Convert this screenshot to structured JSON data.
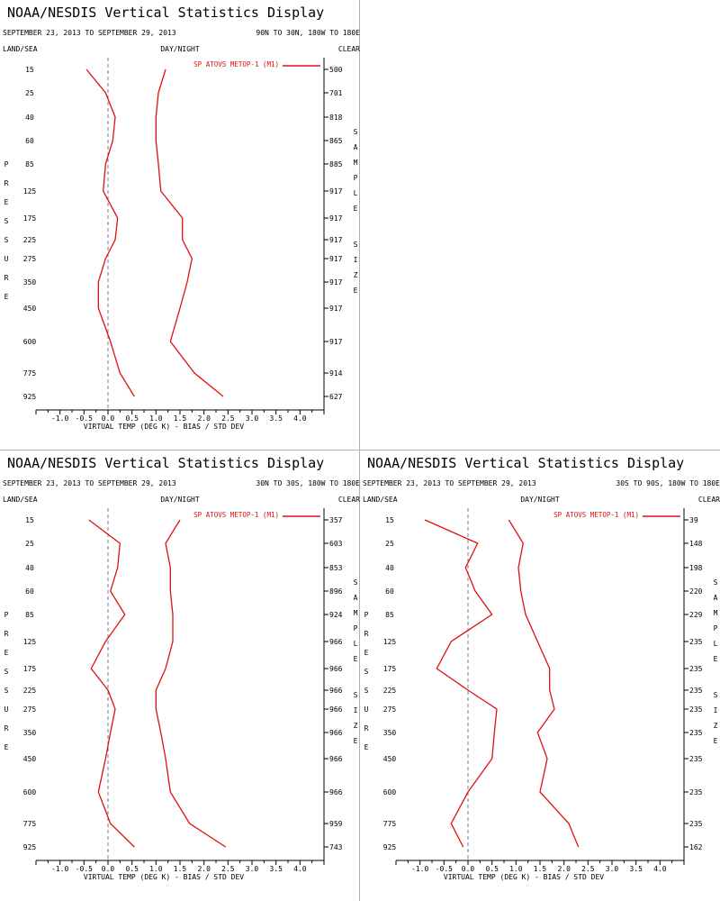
{
  "colors": {
    "series": "#e01010",
    "axis": "#000000",
    "zero_line": "#7a7a9a",
    "divider": "#b0b0b0"
  },
  "common": {
    "title": "NOAA/NESDIS Vertical Statistics Display",
    "date_range": "SEPTEMBER 23, 2013 TO SEPTEMBER 29, 2013",
    "land_sea": "LAND/SEA",
    "day_night": "DAY/NIGHT",
    "clear": "CLEAR",
    "legend": "SP ATOVS METOP-1 (M1)",
    "xlabel": "VIRTUAL TEMP (DEG K) - BIAS / STD DEV",
    "left_vertical": "PRESSURE",
    "right_vertical_1": "SAMPLE",
    "right_vertical_2": "SIZE"
  },
  "chart_data": [
    {
      "type": "line",
      "region": "90N TO 30N, 180W TO 180E",
      "y_levels": [
        "15",
        "25",
        "40",
        "60",
        "85",
        "125",
        "175",
        "225",
        "275",
        "350",
        "450",
        "600",
        "775",
        "925"
      ],
      "xlim": [
        -1.5,
        4.5
      ],
      "x_ticks": [
        "-1.0",
        "-0.5",
        "0.0",
        "0.5",
        "1.0",
        "1.5",
        "2.0",
        "2.5",
        "3.0",
        "3.5",
        "4.0"
      ],
      "grid": false,
      "legend_position": "top-right",
      "sample_size": [
        "500",
        "701",
        "818",
        "865",
        "885",
        "917",
        "917",
        "917",
        "917",
        "917",
        "917",
        "917",
        "914",
        "627"
      ],
      "series": [
        {
          "role": "bias",
          "values": [
            -0.45,
            -0.05,
            0.15,
            0.1,
            -0.05,
            -0.1,
            0.2,
            0.15,
            -0.05,
            -0.2,
            -0.2,
            0.05,
            0.25,
            0.55
          ],
          "xs": [
            -0.48,
            -0.15,
            0.08,
            0.07,
            -0.05,
            -0.05,
            0.1,
            0.12,
            -0.05,
            -0.2,
            -0.2,
            0.0,
            0.25,
            0.55
          ]
        },
        {
          "role": "std_dev",
          "values": [
            1.2,
            1.05,
            1.0,
            1.0,
            1.05,
            1.1,
            1.55,
            1.55,
            1.75,
            1.65,
            1.5,
            1.3,
            1.8,
            2.4
          ]
        }
      ]
    },
    {
      "type": "line",
      "region": "30N TO 30S, 180W TO 180E",
      "y_levels": [
        "15",
        "25",
        "40",
        "60",
        "85",
        "125",
        "175",
        "225",
        "275",
        "350",
        "450",
        "600",
        "775",
        "925"
      ],
      "xlim": [
        -1.5,
        4.5
      ],
      "x_ticks": [
        "-1.0",
        "-0.5",
        "0.0",
        "0.5",
        "1.0",
        "1.5",
        "2.0",
        "2.5",
        "3.0",
        "3.5",
        "4.0"
      ],
      "grid": false,
      "legend_position": "top-right",
      "sample_size": [
        "357",
        "603",
        "853",
        "896",
        "924",
        "966",
        "966",
        "966",
        "966",
        "966",
        "966",
        "966",
        "959",
        "743"
      ],
      "series": [
        {
          "role": "bias",
          "values": [
            -0.4,
            0.25,
            0.2,
            0.05,
            0.35,
            -0.05,
            -0.35,
            0.0,
            0.15,
            0.05,
            -0.05,
            -0.2,
            0.05,
            0.55
          ]
        },
        {
          "role": "std_dev",
          "values": [
            1.5,
            1.2,
            1.3,
            1.3,
            1.35,
            1.35,
            1.2,
            1.0,
            1.0,
            1.1,
            1.2,
            1.3,
            1.7,
            2.45
          ]
        }
      ]
    },
    {
      "type": "line",
      "region": "30S TO 90S, 180W TO 180E",
      "y_levels": [
        "15",
        "25",
        "40",
        "60",
        "85",
        "125",
        "175",
        "225",
        "275",
        "350",
        "450",
        "600",
        "775",
        "925"
      ],
      "xlim": [
        -1.5,
        4.5
      ],
      "x_ticks": [
        "-1.0",
        "-0.5",
        "0.0",
        "0.5",
        "1.0",
        "1.5",
        "2.0",
        "2.5",
        "3.0",
        "3.5",
        "4.0"
      ],
      "grid": false,
      "legend_position": "top-right",
      "sample_size": [
        "39",
        "148",
        "198",
        "220",
        "229",
        "235",
        "235",
        "235",
        "235",
        "235",
        "235",
        "235",
        "235",
        "162"
      ],
      "series": [
        {
          "role": "bias",
          "values": [
            -0.9,
            0.2,
            -0.05,
            0.15,
            0.5,
            -0.35,
            -0.65,
            0.0,
            0.6,
            0.55,
            0.5,
            0.0,
            -0.35,
            -0.1
          ]
        },
        {
          "role": "std_dev",
          "values": [
            0.85,
            1.15,
            1.05,
            1.1,
            1.2,
            1.45,
            1.7,
            1.7,
            1.8,
            1.45,
            1.65,
            1.5,
            2.1,
            2.3
          ]
        }
      ]
    }
  ]
}
